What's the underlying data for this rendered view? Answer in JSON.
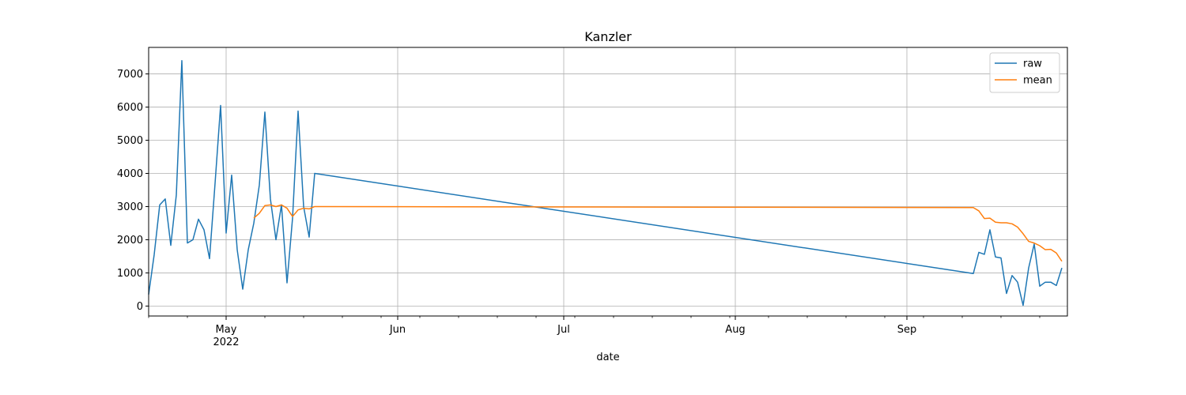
{
  "chart_data": {
    "type": "line",
    "title": "Kanzler",
    "xlabel": "date",
    "ylabel": "",
    "xlim": [
      "2022-04-17",
      "2022-09-30"
    ],
    "ylim": [
      -300,
      7800
    ],
    "grid": true,
    "legend_placement": "top-right",
    "x_ticks": [
      {
        "date": "2022-05-01",
        "label": "May",
        "sublabel": "2022"
      },
      {
        "date": "2022-06-01",
        "label": "Jun",
        "sublabel": ""
      },
      {
        "date": "2022-07-01",
        "label": "Jul",
        "sublabel": ""
      },
      {
        "date": "2022-08-01",
        "label": "Aug",
        "sublabel": ""
      },
      {
        "date": "2022-09-01",
        "label": "Sep",
        "sublabel": ""
      }
    ],
    "y_ticks": [
      0,
      1000,
      2000,
      3000,
      4000,
      5000,
      6000,
      7000
    ],
    "series": [
      {
        "name": "raw",
        "color": "#1f77b4",
        "points": [
          [
            "2022-04-17",
            350
          ],
          [
            "2022-04-18",
            1550
          ],
          [
            "2022-04-19",
            3050
          ],
          [
            "2022-04-20",
            3230
          ],
          [
            "2022-04-21",
            1830
          ],
          [
            "2022-04-22",
            3350
          ],
          [
            "2022-04-23",
            7400
          ],
          [
            "2022-04-24",
            1900
          ],
          [
            "2022-04-25",
            2000
          ],
          [
            "2022-04-26",
            2620
          ],
          [
            "2022-04-27",
            2300
          ],
          [
            "2022-04-28",
            1430
          ],
          [
            "2022-04-29",
            3700
          ],
          [
            "2022-04-30",
            6050
          ],
          [
            "2022-05-01",
            2200
          ],
          [
            "2022-05-02",
            3950
          ],
          [
            "2022-05-03",
            1700
          ],
          [
            "2022-05-04",
            510
          ],
          [
            "2022-05-05",
            1700
          ],
          [
            "2022-05-06",
            2500
          ],
          [
            "2022-05-07",
            3650
          ],
          [
            "2022-05-08",
            5850
          ],
          [
            "2022-05-09",
            3230
          ],
          [
            "2022-05-10",
            2000
          ],
          [
            "2022-05-11",
            3050
          ],
          [
            "2022-05-12",
            700
          ],
          [
            "2022-05-13",
            2650
          ],
          [
            "2022-05-14",
            5880
          ],
          [
            "2022-05-15",
            3000
          ],
          [
            "2022-05-16",
            2080
          ],
          [
            "2022-05-17",
            4000
          ],
          [
            "2022-09-13",
            980
          ],
          [
            "2022-09-14",
            1620
          ],
          [
            "2022-09-15",
            1560
          ],
          [
            "2022-09-16",
            2300
          ],
          [
            "2022-09-17",
            1480
          ],
          [
            "2022-09-18",
            1450
          ],
          [
            "2022-09-19",
            380
          ],
          [
            "2022-09-20",
            920
          ],
          [
            "2022-09-21",
            720
          ],
          [
            "2022-09-22",
            20
          ],
          [
            "2022-09-23",
            1150
          ],
          [
            "2022-09-24",
            1870
          ],
          [
            "2022-09-25",
            600
          ],
          [
            "2022-09-26",
            720
          ],
          [
            "2022-09-27",
            720
          ],
          [
            "2022-09-28",
            620
          ],
          [
            "2022-09-29",
            1150
          ]
        ]
      },
      {
        "name": "mean",
        "color": "#ff7f0e",
        "points": [
          [
            "2022-05-06",
            2650
          ],
          [
            "2022-05-07",
            2800
          ],
          [
            "2022-05-08",
            3030
          ],
          [
            "2022-05-09",
            3050
          ],
          [
            "2022-05-10",
            3000
          ],
          [
            "2022-05-11",
            3050
          ],
          [
            "2022-05-12",
            2950
          ],
          [
            "2022-05-13",
            2700
          ],
          [
            "2022-05-14",
            2900
          ],
          [
            "2022-05-15",
            2950
          ],
          [
            "2022-05-16",
            2930
          ],
          [
            "2022-05-17",
            3000
          ],
          [
            "2022-09-13",
            2970
          ],
          [
            "2022-09-14",
            2870
          ],
          [
            "2022-09-15",
            2640
          ],
          [
            "2022-09-16",
            2650
          ],
          [
            "2022-09-17",
            2530
          ],
          [
            "2022-09-18",
            2510
          ],
          [
            "2022-09-19",
            2510
          ],
          [
            "2022-09-20",
            2480
          ],
          [
            "2022-09-21",
            2380
          ],
          [
            "2022-09-22",
            2180
          ],
          [
            "2022-09-23",
            1950
          ],
          [
            "2022-09-24",
            1900
          ],
          [
            "2022-09-25",
            1820
          ],
          [
            "2022-09-26",
            1700
          ],
          [
            "2022-09-27",
            1710
          ],
          [
            "2022-09-28",
            1600
          ],
          [
            "2022-09-29",
            1350
          ]
        ]
      }
    ]
  }
}
